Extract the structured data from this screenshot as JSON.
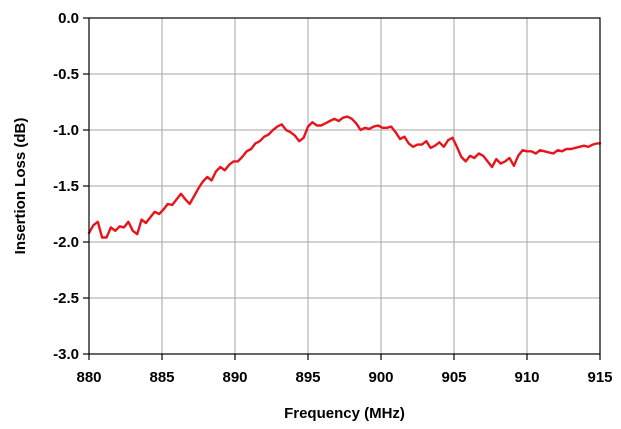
{
  "chart_data": {
    "type": "line",
    "title": "",
    "xlabel": "Frequency (MHz)",
    "ylabel": "Insertion Loss (dB)",
    "xlim": [
      880,
      915
    ],
    "ylim": [
      -3.0,
      0.0
    ],
    "x_ticks": [
      880,
      885,
      890,
      895,
      900,
      905,
      910,
      915
    ],
    "x_tick_labels": [
      "880",
      "885",
      "890",
      "895",
      "900",
      "905",
      "910",
      "915"
    ],
    "y_ticks": [
      0.0,
      -0.5,
      -1.0,
      -1.5,
      -2.0,
      -2.5,
      -3.0
    ],
    "y_tick_labels": [
      "0.0",
      "-0.5",
      "-1.0",
      "-1.5",
      "-2.0",
      "-2.5",
      "-3.0"
    ],
    "grid": true,
    "legend": "none",
    "series": [
      {
        "color": "#e8141c",
        "x": [
          880.0,
          880.3,
          880.6,
          880.9,
          881.2,
          881.5,
          881.8,
          882.1,
          882.4,
          882.7,
          883.0,
          883.3,
          883.6,
          883.9,
          884.2,
          884.5,
          884.8,
          885.1,
          885.4,
          885.7,
          886.0,
          886.3,
          886.6,
          886.9,
          887.2,
          887.5,
          887.8,
          888.1,
          888.4,
          888.7,
          889.0,
          889.3,
          889.6,
          889.9,
          890.2,
          890.5,
          890.8,
          891.1,
          891.4,
          891.7,
          892.0,
          892.3,
          892.6,
          892.9,
          893.2,
          893.5,
          893.8,
          894.1,
          894.4,
          894.7,
          895.0,
          895.3,
          895.6,
          895.9,
          896.2,
          896.5,
          896.8,
          897.1,
          897.4,
          897.7,
          898.0,
          898.3,
          898.6,
          898.9,
          899.2,
          899.5,
          899.8,
          900.1,
          900.4,
          900.7,
          901.0,
          901.3,
          901.6,
          901.9,
          902.2,
          902.5,
          902.8,
          903.1,
          903.4,
          903.7,
          904.0,
          904.3,
          904.6,
          904.9,
          905.2,
          905.5,
          905.8,
          906.1,
          906.4,
          906.7,
          907.0,
          907.3,
          907.6,
          907.9,
          908.2,
          908.5,
          908.8,
          909.1,
          909.4,
          909.7,
          910.0,
          910.3,
          910.6,
          910.9,
          911.2,
          911.5,
          911.8,
          912.1,
          912.4,
          912.7,
          913.0,
          913.3,
          913.6,
          913.9,
          914.2,
          914.5,
          914.8,
          915.0
        ],
        "y": [
          -1.92,
          -1.85,
          -1.82,
          -1.96,
          -1.96,
          -1.87,
          -1.9,
          -1.86,
          -1.87,
          -1.82,
          -1.9,
          -1.93,
          -1.8,
          -1.83,
          -1.78,
          -1.73,
          -1.75,
          -1.71,
          -1.66,
          -1.67,
          -1.62,
          -1.57,
          -1.62,
          -1.66,
          -1.59,
          -1.52,
          -1.46,
          -1.42,
          -1.45,
          -1.37,
          -1.33,
          -1.36,
          -1.31,
          -1.28,
          -1.28,
          -1.24,
          -1.19,
          -1.17,
          -1.12,
          -1.1,
          -1.06,
          -1.04,
          -1.0,
          -0.97,
          -0.95,
          -1.0,
          -1.02,
          -1.05,
          -1.1,
          -1.07,
          -0.97,
          -0.93,
          -0.96,
          -0.96,
          -0.94,
          -0.92,
          -0.9,
          -0.92,
          -0.89,
          -0.88,
          -0.9,
          -0.94,
          -1.0,
          -0.98,
          -0.99,
          -0.97,
          -0.96,
          -0.98,
          -0.98,
          -0.97,
          -1.02,
          -1.08,
          -1.06,
          -1.12,
          -1.15,
          -1.13,
          -1.13,
          -1.1,
          -1.16,
          -1.14,
          -1.11,
          -1.15,
          -1.09,
          -1.07,
          -1.15,
          -1.24,
          -1.28,
          -1.23,
          -1.25,
          -1.21,
          -1.23,
          -1.28,
          -1.33,
          -1.26,
          -1.3,
          -1.28,
          -1.25,
          -1.32,
          -1.23,
          -1.18,
          -1.19,
          -1.19,
          -1.21,
          -1.18,
          -1.19,
          -1.2,
          -1.21,
          -1.18,
          -1.19,
          -1.17,
          -1.17,
          -1.16,
          -1.15,
          -1.14,
          -1.15,
          -1.13,
          -1.12,
          -1.12
        ]
      }
    ]
  }
}
